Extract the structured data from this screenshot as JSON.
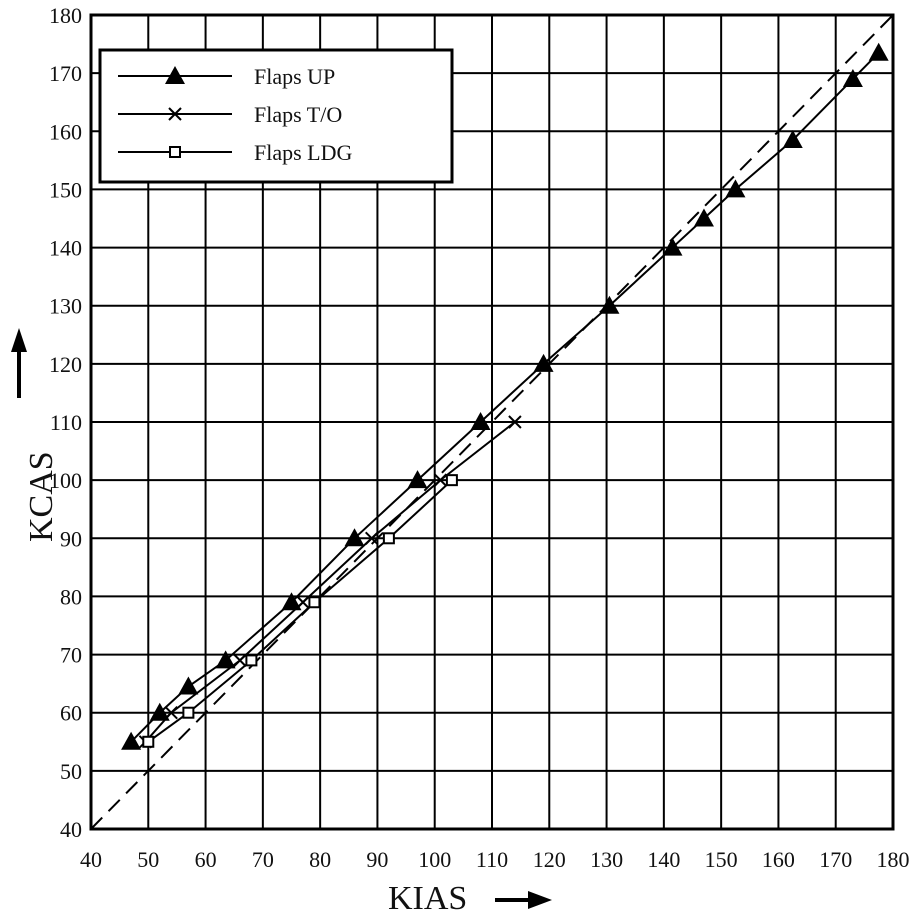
{
  "chart_data": {
    "type": "line",
    "xlabel": "KIAS",
    "ylabel": "KCAS",
    "xlim": [
      40,
      180
    ],
    "ylim": [
      40,
      180
    ],
    "xticks": [
      40,
      50,
      60,
      70,
      80,
      90,
      100,
      110,
      120,
      130,
      140,
      150,
      160,
      170,
      180
    ],
    "yticks": [
      40,
      50,
      60,
      70,
      80,
      90,
      100,
      110,
      120,
      130,
      140,
      150,
      160,
      170,
      180
    ],
    "grid": true,
    "legend_position": "top-left",
    "reference_line": {
      "style": "dashed",
      "points": [
        [
          40,
          40
        ],
        [
          180,
          180
        ]
      ]
    },
    "series": [
      {
        "name": "Flaps UP",
        "marker": "triangle",
        "points": [
          [
            47,
            55
          ],
          [
            52,
            60
          ],
          [
            57,
            64.5
          ],
          [
            63.5,
            69
          ],
          [
            75,
            79
          ],
          [
            86,
            90
          ],
          [
            97,
            100
          ],
          [
            108,
            110
          ],
          [
            119,
            120
          ],
          [
            130.5,
            130
          ],
          [
            141.5,
            140
          ],
          [
            147,
            145
          ],
          [
            152.5,
            150
          ],
          [
            162.5,
            158.5
          ],
          [
            173,
            169
          ],
          [
            177.5,
            173.5
          ]
        ]
      },
      {
        "name": "Flaps T/O",
        "marker": "x",
        "points": [
          [
            49.5,
            55
          ],
          [
            54,
            60
          ],
          [
            66,
            69
          ],
          [
            77,
            79
          ],
          [
            89,
            90
          ],
          [
            101,
            100
          ],
          [
            114,
            110
          ]
        ]
      },
      {
        "name": "Flaps LDG",
        "marker": "square",
        "points": [
          [
            50,
            55
          ],
          [
            57,
            60
          ],
          [
            68,
            69
          ],
          [
            79,
            79
          ],
          [
            92,
            90
          ],
          [
            103,
            100
          ]
        ]
      }
    ]
  }
}
